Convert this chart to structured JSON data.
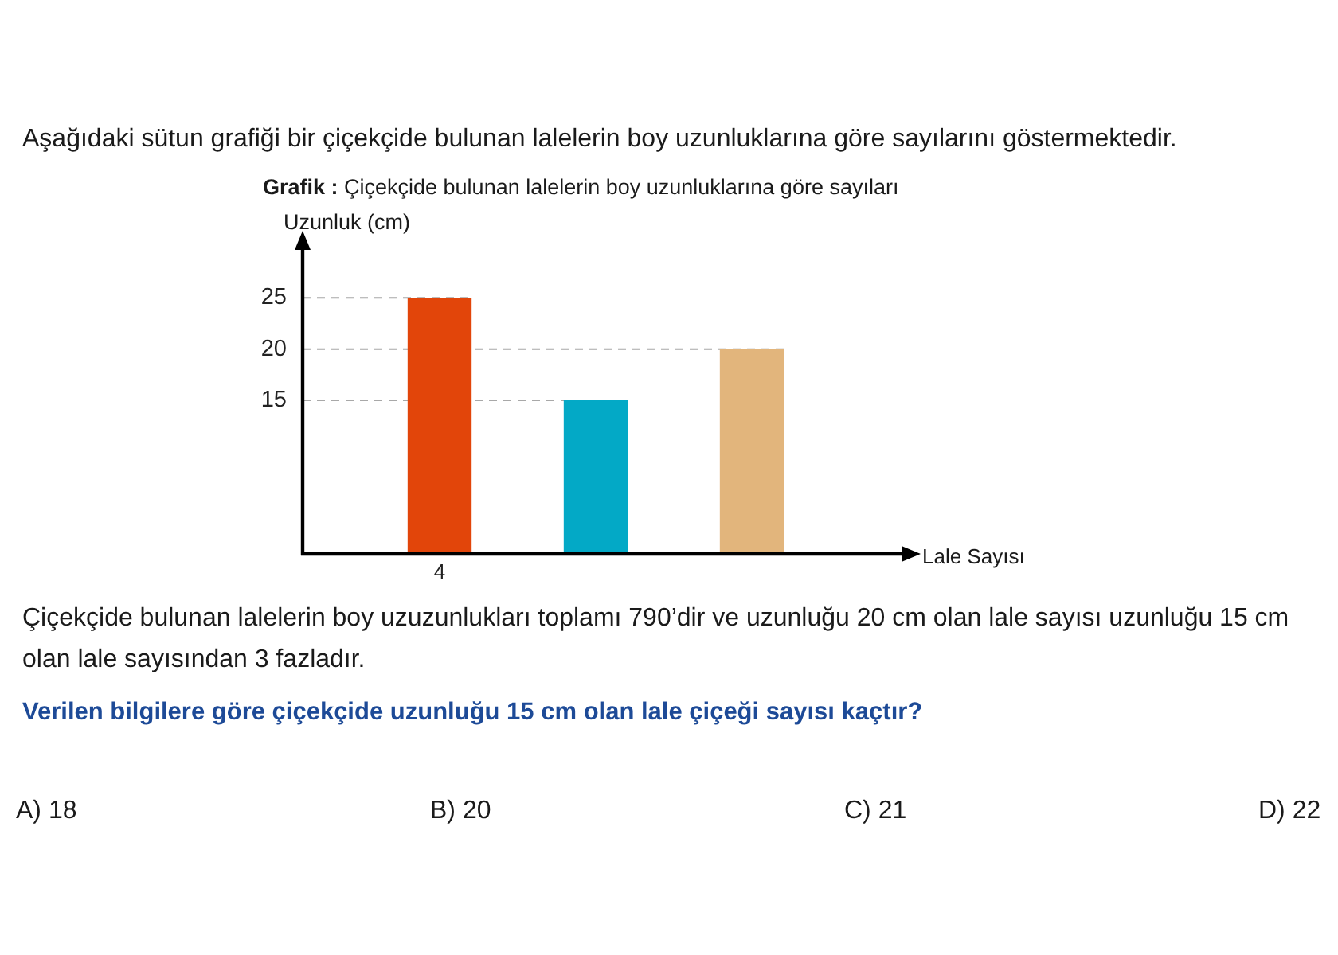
{
  "chart_data": {
    "type": "bar",
    "title": "Grafik : Çiçekçide bulunan lalelerin boy uzunluklarına göre sayıları",
    "ylabel": "Uzunluk (cm)",
    "xlabel": "Lale Sayısı",
    "categories": [
      "4",
      null,
      null
    ],
    "values": [
      25,
      15,
      20
    ],
    "colors": [
      "#e2450a",
      "#03a9c6",
      "#e2b57c"
    ],
    "ylim": [
      0,
      30
    ],
    "yticks": [
      15,
      20,
      25
    ],
    "ref_lines": [
      {
        "axis": "y",
        "value": 25,
        "color": "#a8a8a8",
        "line_style": "dashed"
      },
      {
        "axis": "y",
        "value": 20,
        "color": "#a8a8a8",
        "line_style": "dashed"
      },
      {
        "axis": "y",
        "value": 15,
        "color": "#a8a8a8",
        "line_style": "dashed"
      }
    ],
    "annotations": [
      "Aşağıdaki sütun grafiği bir çiçekçide bulunan lalelerin boy uzunluklarına göre sayılarını göstermektedir.",
      "Çiçekçide bulunan lalelerin boy uzuzunlukları toplamı 790’dir ve uzunluğu 20 cm olan lale sayısı uzunluğu 15 cm olan lale sayısından 3 fazladır.",
      "Verilen bilgilere göre çiçekçide uzunluğu 15 cm olan lale çiçeği sayısı kaçtır?",
      "A) 18",
      "B) 20",
      "C) 21",
      "D) 22"
    ]
  }
}
